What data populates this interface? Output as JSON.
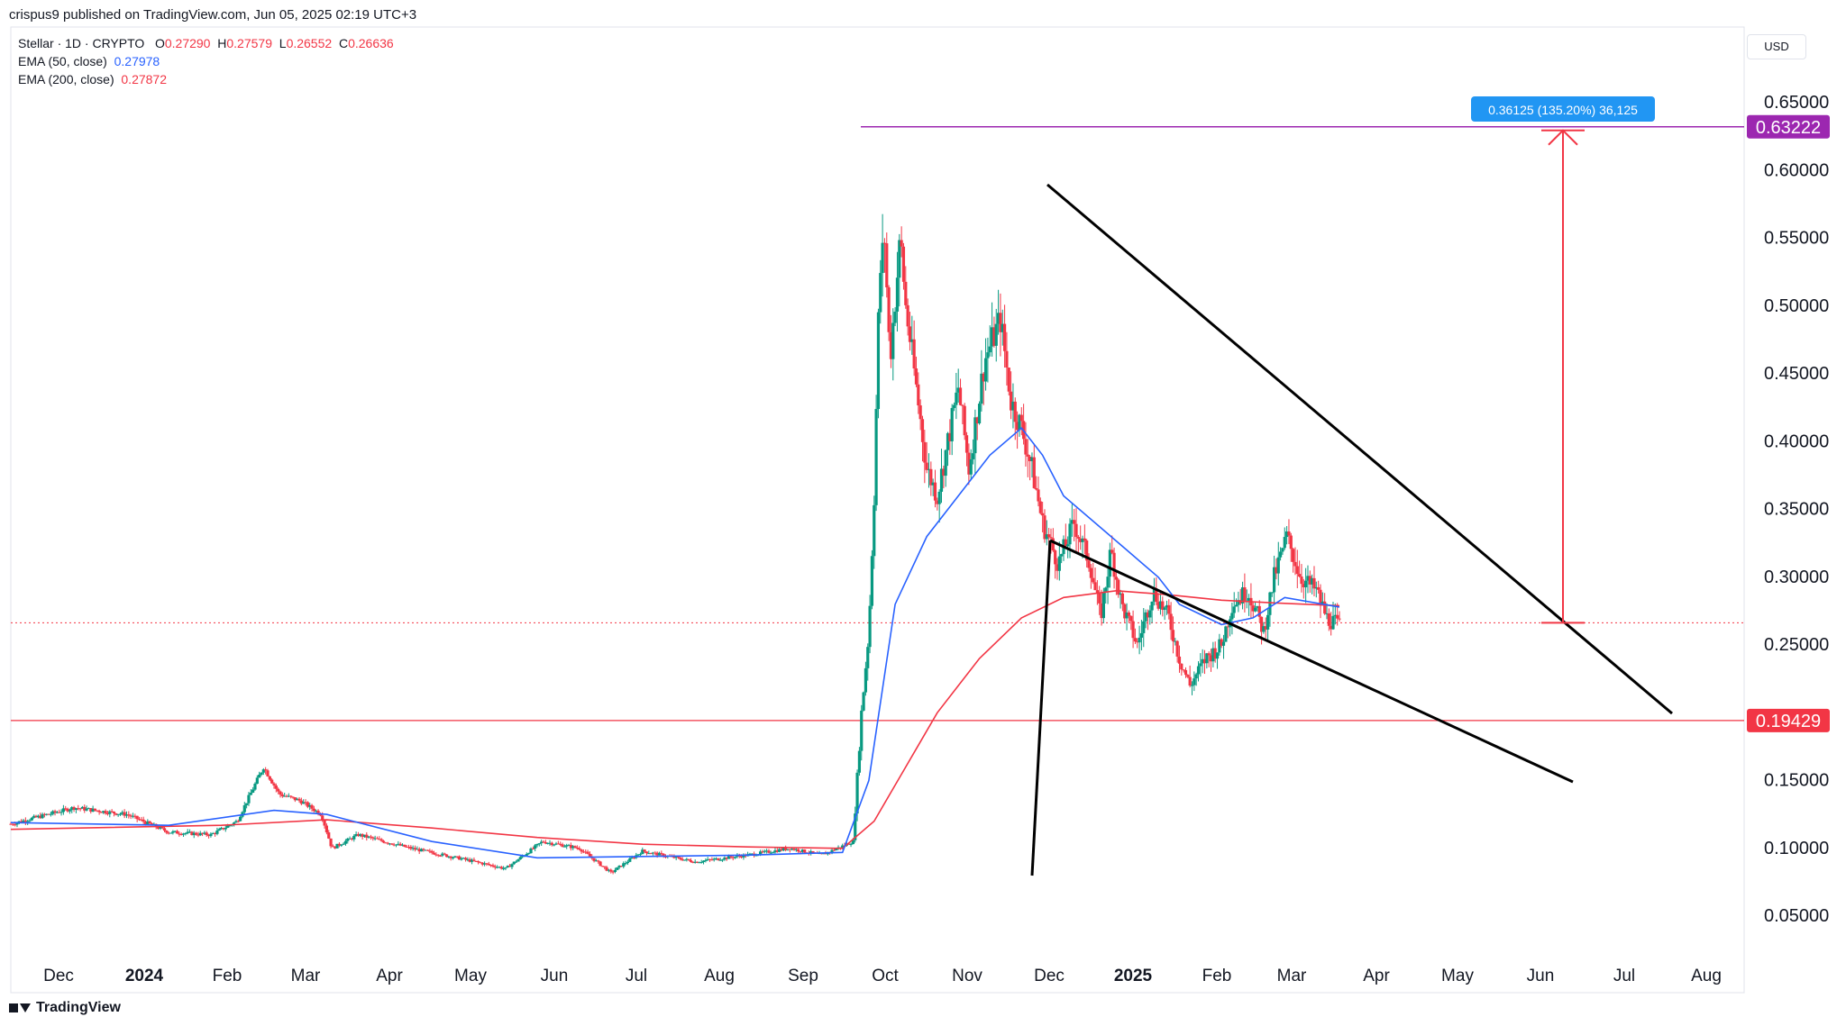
{
  "header": {
    "published": "crispus9 published on TradingView.com, Jun 05, 2025 02:19 UTC+3"
  },
  "legend": {
    "symbol": "Stellar · 1D · CRYPTO",
    "o_label": "O",
    "o_value": "0.27290",
    "h_label": "H",
    "h_value": "0.27579",
    "l_label": "L",
    "l_value": "0.26552",
    "c_label": "C",
    "c_value": "0.26636",
    "ema50_label": "EMA (50, close)",
    "ema50_value": "0.27978",
    "ema200_label": "EMA (200, close)",
    "ema200_value": "0.27872"
  },
  "currency": "USD",
  "footer": {
    "brand": "TradingView"
  },
  "colors": {
    "up": "#089981",
    "down": "#f23645",
    "ema50": "#2962ff",
    "ema200": "#f23645",
    "accent": "#9c27b0",
    "measure": "#2196f3"
  },
  "chart_data": {
    "type": "candlestick",
    "y_ticks": [
      "0.65000",
      "0.60000",
      "0.55000",
      "0.50000",
      "0.45000",
      "0.40000",
      "0.35000",
      "0.30000",
      "0.25000",
      "0.15000",
      "0.10000",
      "0.05000"
    ],
    "x_ticks": [
      "Dec",
      "2024",
      "Feb",
      "Mar",
      "Apr",
      "May",
      "Jun",
      "Jul",
      "Aug",
      "Sep",
      "Oct",
      "Nov",
      "Dec",
      "2025",
      "Feb",
      "Mar",
      "Apr",
      "May",
      "Jun",
      "Jul",
      "Aug"
    ],
    "ylim": [
      0.02,
      0.68
    ],
    "price_labels": {
      "high": "0.63222",
      "low": "0.19429"
    },
    "measure_label": "0.36125 (135.20%) 36,125",
    "current_price": 0.26636,
    "support_level": 0.19429,
    "resistance_level": 0.63222,
    "price_path": [
      [
        0,
        0.118
      ],
      [
        60,
        0.13
      ],
      [
        110,
        0.125
      ],
      [
        150,
        0.112
      ],
      [
        190,
        0.11
      ],
      [
        215,
        0.12
      ],
      [
        240,
        0.16
      ],
      [
        255,
        0.14
      ],
      [
        275,
        0.135
      ],
      [
        295,
        0.125
      ],
      [
        305,
        0.1
      ],
      [
        330,
        0.11
      ],
      [
        380,
        0.1
      ],
      [
        430,
        0.092
      ],
      [
        470,
        0.085
      ],
      [
        505,
        0.105
      ],
      [
        540,
        0.1
      ],
      [
        570,
        0.082
      ],
      [
        600,
        0.098
      ],
      [
        650,
        0.09
      ],
      [
        700,
        0.095
      ],
      [
        740,
        0.1
      ],
      [
        770,
        0.095
      ],
      [
        800,
        0.105
      ],
      [
        808,
        0.2
      ],
      [
        815,
        0.26
      ],
      [
        820,
        0.36
      ],
      [
        825,
        0.52
      ],
      [
        830,
        0.55
      ],
      [
        835,
        0.46
      ],
      [
        845,
        0.55
      ],
      [
        850,
        0.5
      ],
      [
        860,
        0.44
      ],
      [
        870,
        0.38
      ],
      [
        880,
        0.36
      ],
      [
        890,
        0.4
      ],
      [
        900,
        0.44
      ],
      [
        910,
        0.38
      ],
      [
        925,
        0.46
      ],
      [
        940,
        0.49
      ],
      [
        950,
        0.43
      ],
      [
        960,
        0.41
      ],
      [
        970,
        0.38
      ],
      [
        980,
        0.34
      ],
      [
        995,
        0.31
      ],
      [
        1010,
        0.34
      ],
      [
        1025,
        0.31
      ],
      [
        1035,
        0.27
      ],
      [
        1045,
        0.32
      ],
      [
        1055,
        0.28
      ],
      [
        1070,
        0.25
      ],
      [
        1085,
        0.29
      ],
      [
        1100,
        0.27
      ],
      [
        1110,
        0.24
      ],
      [
        1120,
        0.22
      ],
      [
        1135,
        0.24
      ],
      [
        1150,
        0.25
      ],
      [
        1160,
        0.28
      ],
      [
        1175,
        0.29
      ],
      [
        1190,
        0.26
      ],
      [
        1200,
        0.3
      ],
      [
        1212,
        0.33
      ],
      [
        1225,
        0.3
      ],
      [
        1240,
        0.29
      ],
      [
        1250,
        0.27
      ],
      [
        1262,
        0.264
      ]
    ],
    "ema50_path": [
      [
        0,
        0.119
      ],
      [
        150,
        0.117
      ],
      [
        250,
        0.128
      ],
      [
        300,
        0.125
      ],
      [
        400,
        0.105
      ],
      [
        500,
        0.093
      ],
      [
        600,
        0.094
      ],
      [
        700,
        0.095
      ],
      [
        790,
        0.097
      ],
      [
        815,
        0.15
      ],
      [
        840,
        0.28
      ],
      [
        870,
        0.33
      ],
      [
        900,
        0.36
      ],
      [
        930,
        0.39
      ],
      [
        960,
        0.41
      ],
      [
        980,
        0.39
      ],
      [
        1000,
        0.36
      ],
      [
        1030,
        0.34
      ],
      [
        1060,
        0.32
      ],
      [
        1090,
        0.3
      ],
      [
        1110,
        0.28
      ],
      [
        1150,
        0.265
      ],
      [
        1180,
        0.27
      ],
      [
        1210,
        0.285
      ],
      [
        1262,
        0.278
      ]
    ],
    "ema200_path": [
      [
        0,
        0.114
      ],
      [
        200,
        0.117
      ],
      [
        300,
        0.121
      ],
      [
        400,
        0.115
      ],
      [
        500,
        0.108
      ],
      [
        600,
        0.103
      ],
      [
        700,
        0.101
      ],
      [
        790,
        0.1
      ],
      [
        820,
        0.12
      ],
      [
        850,
        0.16
      ],
      [
        880,
        0.2
      ],
      [
        920,
        0.24
      ],
      [
        960,
        0.27
      ],
      [
        1000,
        0.285
      ],
      [
        1050,
        0.29
      ],
      [
        1100,
        0.287
      ],
      [
        1150,
        0.283
      ],
      [
        1200,
        0.281
      ],
      [
        1262,
        0.279
      ]
    ]
  }
}
